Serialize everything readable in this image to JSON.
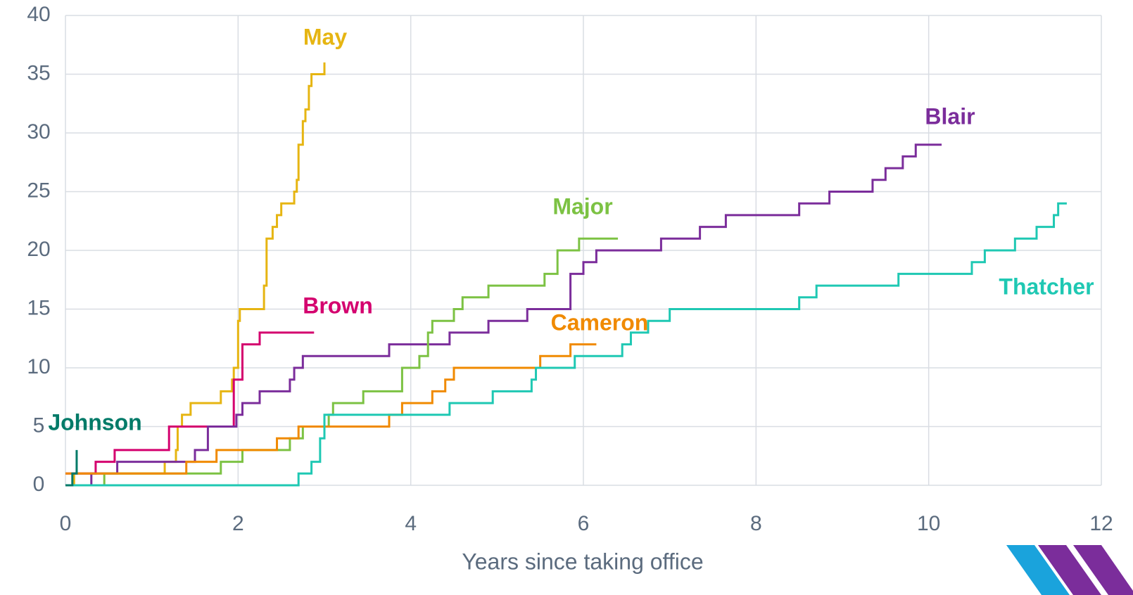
{
  "chart_data": {
    "type": "line",
    "step": true,
    "x_label": "Years since taking office",
    "xlim": [
      0,
      12
    ],
    "xticks": [
      0,
      2,
      4,
      6,
      8,
      10,
      12
    ],
    "ylim": [
      0,
      40
    ],
    "yticks": [
      0,
      5,
      10,
      15,
      20,
      25,
      30,
      35,
      40
    ],
    "grid": true,
    "series": [
      {
        "name": "May",
        "color": "#e6b512",
        "x": [
          0,
          0.1,
          1.15,
          1.28,
          1.3,
          1.35,
          1.45,
          1.8,
          1.93,
          1.95,
          2.0,
          2.02,
          2.3,
          2.33,
          2.4,
          2.45,
          2.5,
          2.65,
          2.68,
          2.7,
          2.75,
          2.78,
          2.82,
          2.85,
          3.0,
          3.0
        ],
        "values": [
          0,
          1,
          2,
          3,
          5,
          6,
          7,
          8,
          9,
          10,
          14,
          15,
          17,
          21,
          22,
          23,
          24,
          25,
          26,
          29,
          31,
          32,
          34,
          35,
          36,
          36
        ]
      },
      {
        "name": "Brown",
        "color": "#d4006e",
        "x": [
          0,
          0.35,
          0.57,
          1.2,
          1.95,
          2.05,
          2.25,
          2.88
        ],
        "values": [
          1,
          2,
          3,
          5,
          9,
          12,
          13,
          13
        ]
      },
      {
        "name": "Blair",
        "color": "#7b2d9b",
        "x": [
          0,
          0.3,
          0.6,
          1.5,
          1.65,
          1.98,
          2.05,
          2.25,
          2.6,
          2.65,
          2.75,
          3.75,
          4.45,
          4.9,
          5.35,
          5.85,
          6.0,
          6.15,
          6.9,
          7.35,
          7.65,
          8.5,
          8.85,
          9.35,
          9.5,
          9.7,
          9.85,
          10.15
        ],
        "values": [
          0,
          1,
          2,
          3,
          5,
          6,
          7,
          8,
          9,
          10,
          11,
          12,
          13,
          14,
          15,
          18,
          19,
          20,
          21,
          22,
          23,
          24,
          25,
          26,
          27,
          28,
          29,
          29
        ]
      },
      {
        "name": "Major",
        "color": "#7cc243",
        "x": [
          0,
          0.45,
          1.8,
          2.05,
          2.6,
          2.75,
          3.05,
          3.1,
          3.45,
          3.9,
          4.1,
          4.2,
          4.25,
          4.5,
          4.6,
          4.9,
          5.55,
          5.7,
          5.95,
          6.4
        ],
        "values": [
          0,
          1,
          2,
          3,
          4,
          5,
          6,
          7,
          8,
          10,
          11,
          13,
          14,
          15,
          16,
          17,
          18,
          20,
          21,
          21
        ]
      },
      {
        "name": "Cameron",
        "color": "#f08a00",
        "x": [
          0,
          1.4,
          1.75,
          2.45,
          2.7,
          3.75,
          3.9,
          4.25,
          4.4,
          4.5,
          5.5,
          5.85,
          6.15
        ],
        "values": [
          1,
          2,
          3,
          4,
          5,
          6,
          7,
          8,
          9,
          10,
          11,
          12,
          12
        ]
      },
      {
        "name": "Thatcher",
        "color": "#1fc8b3",
        "x": [
          0,
          2.7,
          2.85,
          2.95,
          3.0,
          4.45,
          4.95,
          5.4,
          5.45,
          5.9,
          6.45,
          6.55,
          6.75,
          7.0,
          8.5,
          8.7,
          9.65,
          10.5,
          10.65,
          11.0,
          11.25,
          11.45,
          11.5,
          11.6
        ],
        "values": [
          0,
          1,
          2,
          4,
          6,
          7,
          8,
          9,
          10,
          11,
          12,
          13,
          14,
          15,
          16,
          17,
          18,
          19,
          20,
          21,
          22,
          23,
          24,
          24
        ]
      },
      {
        "name": "Johnson",
        "color": "#007a68",
        "x": [
          0,
          0.08,
          0.13
        ],
        "values": [
          0,
          1,
          3
        ]
      }
    ]
  }
}
